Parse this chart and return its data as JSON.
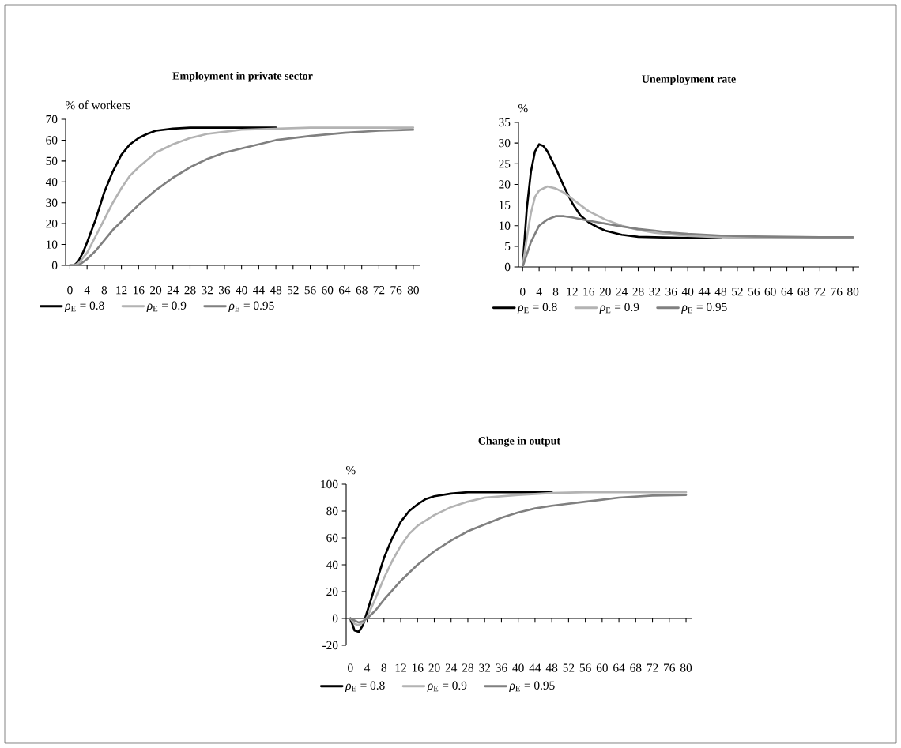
{
  "chart_data": [
    {
      "type": "line",
      "title": "Employment in private sector",
      "ylabel": "% of workers",
      "xlim": [
        -1,
        81.5
      ],
      "ylim": [
        0,
        70
      ],
      "xticks": [
        0,
        4,
        8,
        12,
        16,
        20,
        24,
        28,
        32,
        36,
        40,
        44,
        48,
        52,
        56,
        60,
        64,
        68,
        72,
        76,
        80
      ],
      "yticks": [
        0,
        10,
        20,
        30,
        40,
        50,
        60,
        70
      ],
      "legend": "bottom left",
      "marker": "none",
      "line_style": "solid",
      "series": [
        {
          "name": "*ρ*$_{E}$ = 0.8",
          "color": "#000000",
          "x": [
            0,
            1,
            2,
            3,
            4,
            6,
            8,
            10,
            12,
            14,
            16,
            18,
            20,
            24,
            28,
            32,
            40,
            48
          ],
          "values": [
            0,
            0,
            2,
            6,
            11,
            22,
            35,
            45,
            53,
            58,
            61,
            63,
            64.5,
            65.5,
            66,
            66,
            66,
            66
          ]
        },
        {
          "name": "*ρ*$_{E}$ = 0.9",
          "color": "#b3b3b3",
          "x": [
            0,
            1,
            2,
            4,
            6,
            8,
            10,
            12,
            14,
            16,
            20,
            24,
            28,
            32,
            36,
            40,
            48,
            56,
            64,
            72,
            80
          ],
          "values": [
            0,
            0,
            1,
            6,
            14,
            22,
            30,
            37,
            43,
            47,
            54,
            58,
            61,
            63,
            64,
            65,
            65.5,
            66,
            66,
            66,
            66
          ]
        },
        {
          "name": "*ρ*$_{E}$ = 0.95",
          "color": "#808080",
          "x": [
            0,
            2,
            4,
            6,
            8,
            10,
            12,
            16,
            20,
            24,
            28,
            32,
            36,
            40,
            44,
            48,
            56,
            64,
            72,
            80
          ],
          "values": [
            0,
            0,
            3,
            7,
            12,
            17,
            21,
            29,
            36,
            42,
            47,
            51,
            54,
            56,
            58,
            60,
            62,
            63.5,
            64.5,
            65
          ]
        }
      ]
    },
    {
      "type": "line",
      "title": "Unemployment rate",
      "ylabel": "%",
      "xlim": [
        -1,
        81.5
      ],
      "ylim": [
        0,
        35
      ],
      "xticks": [
        0,
        4,
        8,
        12,
        16,
        20,
        24,
        28,
        32,
        36,
        40,
        44,
        48,
        52,
        56,
        60,
        64,
        68,
        72,
        76,
        80
      ],
      "yticks": [
        0,
        5,
        10,
        15,
        20,
        25,
        30,
        35
      ],
      "legend": "bottom left",
      "marker": "none",
      "line_style": "solid",
      "series": [
        {
          "name": "*ρ*$_{E}$ = 0.8",
          "color": "#000000",
          "x": [
            0,
            1,
            2,
            3,
            4,
            5,
            6,
            8,
            10,
            12,
            14,
            16,
            18,
            20,
            24,
            28,
            32,
            40,
            48
          ],
          "values": [
            0,
            14,
            23,
            28,
            29.7,
            29.3,
            28,
            24,
            19.5,
            15.5,
            12.5,
            10.8,
            9.7,
            8.8,
            7.8,
            7.3,
            7.2,
            7,
            7
          ]
        },
        {
          "name": "*ρ*$_{E}$ = 0.9",
          "color": "#b3b3b3",
          "x": [
            0,
            1,
            2,
            3,
            4,
            6,
            8,
            10,
            12,
            14,
            16,
            20,
            24,
            28,
            32,
            40,
            48,
            56,
            64,
            72,
            80
          ],
          "values": [
            0,
            7,
            13,
            17,
            18.5,
            19.5,
            19,
            18,
            16.5,
            15,
            13.5,
            11.5,
            10,
            9,
            8.3,
            7.5,
            7.2,
            7,
            7,
            7,
            7
          ]
        },
        {
          "name": "*ρ*$_{E}$ = 0.95",
          "color": "#808080",
          "x": [
            0,
            2,
            4,
            6,
            8,
            10,
            12,
            16,
            20,
            24,
            28,
            32,
            36,
            40,
            48,
            56,
            64,
            72,
            80
          ],
          "values": [
            0,
            6,
            10,
            11.5,
            12.3,
            12.3,
            12,
            11.2,
            10.5,
            9.8,
            9.2,
            8.8,
            8.3,
            8,
            7.6,
            7.4,
            7.3,
            7.2,
            7.2
          ]
        }
      ]
    },
    {
      "type": "line",
      "title": "Change in output",
      "ylabel": "%",
      "xlim": [
        -1,
        81.5
      ],
      "ylim": [
        -20,
        100
      ],
      "xticks": [
        0,
        4,
        8,
        12,
        16,
        20,
        24,
        28,
        32,
        36,
        40,
        44,
        48,
        52,
        56,
        60,
        64,
        68,
        72,
        76,
        80
      ],
      "yticks": [
        -20,
        0,
        20,
        40,
        60,
        80,
        100
      ],
      "legend": "bottom left",
      "marker": "none",
      "line_style": "solid",
      "series": [
        {
          "name": "*ρ*$_{E}$ = 0.8",
          "color": "#000000",
          "x": [
            0,
            1,
            2,
            3,
            4,
            6,
            8,
            10,
            12,
            14,
            16,
            18,
            20,
            24,
            28,
            40,
            48
          ],
          "values": [
            0,
            -9,
            -10,
            -5,
            5,
            25,
            45,
            60,
            72,
            80,
            85,
            89,
            91,
            93,
            94,
            94,
            94
          ]
        },
        {
          "name": "*ρ*$_{E}$ = 0.9",
          "color": "#b3b3b3",
          "x": [
            0,
            1,
            2,
            3,
            4,
            6,
            8,
            10,
            12,
            14,
            16,
            20,
            24,
            28,
            32,
            40,
            48,
            56,
            64,
            72,
            80
          ],
          "values": [
            0,
            -4,
            -5,
            -3,
            1,
            15,
            30,
            43,
            54,
            63,
            69,
            77,
            83,
            87,
            90,
            92,
            93.5,
            94,
            94,
            94,
            94
          ]
        },
        {
          "name": "*ρ*$_{E}$ = 0.95",
          "color": "#808080",
          "x": [
            0,
            2,
            3,
            4,
            6,
            8,
            10,
            12,
            16,
            20,
            24,
            28,
            32,
            36,
            40,
            44,
            48,
            56,
            64,
            72,
            80
          ],
          "values": [
            0,
            -3,
            -2,
            0,
            6,
            14,
            21,
            28,
            40,
            50,
            58,
            65,
            70,
            75,
            79,
            82,
            84,
            87,
            90,
            91.5,
            92
          ]
        }
      ]
    }
  ]
}
